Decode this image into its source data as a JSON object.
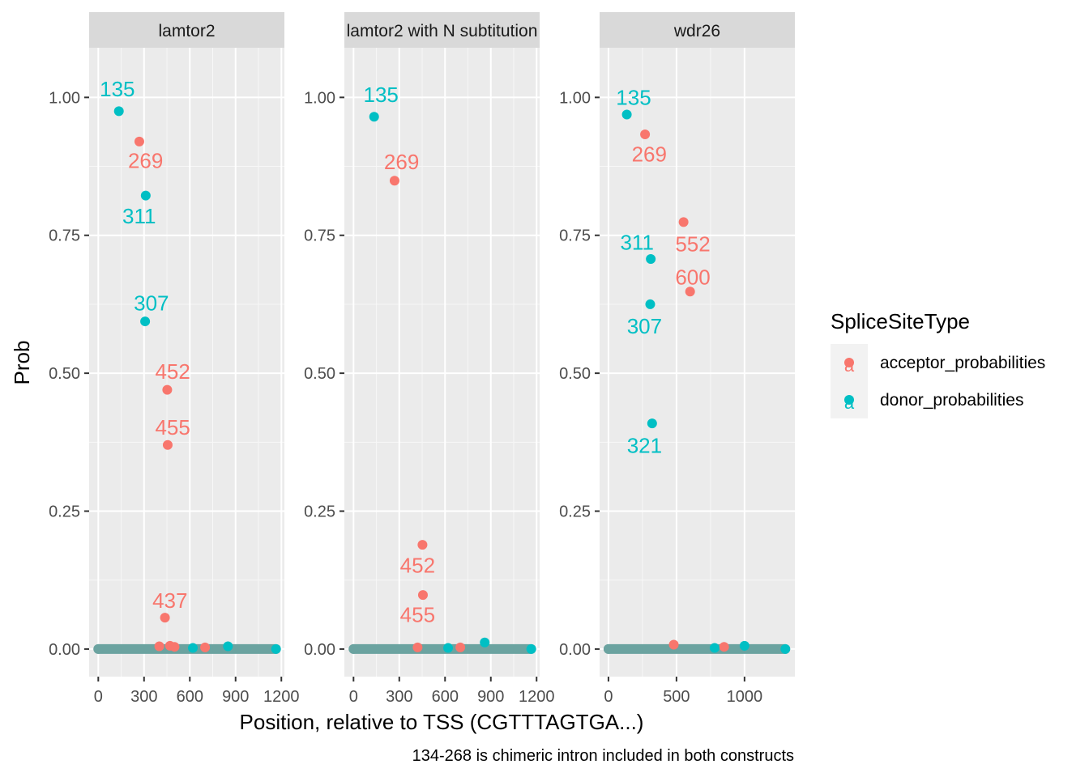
{
  "chart_data": {
    "type": "scatter",
    "ylabel": "Prob",
    "xlabel": "Position, relative to TSS (CGTTTAGTGA...)",
    "caption": "134-268 is chimeric intron included in both constructs",
    "ylim": [
      -0.05,
      1.09
    ],
    "y_ticks": [
      0.0,
      0.25,
      0.5,
      0.75,
      1.0
    ],
    "y_tick_labels": [
      "0.00",
      "0.25",
      "0.50",
      "0.75",
      "1.00"
    ],
    "grid": true,
    "legend": {
      "title": "SpliceSiteType",
      "placement": "right",
      "entries": [
        {
          "name": "acceptor_probabilities",
          "color": "#F8766D",
          "key_glyph": "a"
        },
        {
          "name": "donor_probabilities",
          "color": "#00BFC4",
          "key_glyph": "a"
        }
      ]
    },
    "series_colors": {
      "acceptor": "#F8766D",
      "donor": "#00BFC4",
      "overlap": "#6BA3A0"
    },
    "panels": [
      {
        "title": "lamtor2",
        "xlim": [
          -60,
          1220
        ],
        "x_ticks": [
          0,
          300,
          600,
          900,
          1200
        ],
        "x_tick_labels": [
          "0",
          "300",
          "600",
          "900",
          "1200"
        ],
        "baseline_range": [
          0,
          1165
        ],
        "acceptor": [
          [
            269,
            0.92,
            "269"
          ],
          [
            452,
            0.47,
            "452"
          ],
          [
            455,
            0.37,
            "455"
          ],
          [
            437,
            0.057,
            "437"
          ],
          [
            400,
            0.005,
            ""
          ],
          [
            470,
            0.006,
            ""
          ],
          [
            500,
            0.004,
            ""
          ],
          [
            700,
            0.003,
            ""
          ]
        ],
        "donor": [
          [
            135,
            0.975,
            "135"
          ],
          [
            311,
            0.822,
            "311"
          ],
          [
            307,
            0.594,
            "307"
          ],
          [
            620,
            0.002,
            ""
          ],
          [
            850,
            0.005,
            ""
          ],
          [
            1165,
            0.0,
            ""
          ]
        ],
        "labels": [
          {
            "text": "135",
            "series": "donor",
            "x": 125,
            "y": 1.015
          },
          {
            "text": "269",
            "series": "acceptor",
            "x": 310,
            "y": 0.885
          },
          {
            "text": "311",
            "series": "donor",
            "x": 268,
            "y": 0.785
          },
          {
            "text": "307",
            "series": "donor",
            "x": 348,
            "y": 0.627
          },
          {
            "text": "452",
            "series": "acceptor",
            "x": 488,
            "y": 0.503
          },
          {
            "text": "455",
            "series": "acceptor",
            "x": 488,
            "y": 0.402
          },
          {
            "text": "437",
            "series": "acceptor",
            "x": 470,
            "y": 0.088
          }
        ]
      },
      {
        "title": "lamtor2 with N subtitution",
        "xlim": [
          -60,
          1220
        ],
        "x_ticks": [
          0,
          300,
          600,
          900,
          1200
        ],
        "x_tick_labels": [
          "0",
          "300",
          "600",
          "900",
          "1200"
        ],
        "baseline_range": [
          0,
          1165
        ],
        "acceptor": [
          [
            269,
            0.849,
            "269"
          ],
          [
            452,
            0.189,
            "452"
          ],
          [
            455,
            0.098,
            "455"
          ],
          [
            420,
            0.003,
            ""
          ],
          [
            700,
            0.003,
            ""
          ]
        ],
        "donor": [
          [
            135,
            0.965,
            "135"
          ],
          [
            620,
            0.002,
            ""
          ],
          [
            860,
            0.012,
            ""
          ],
          [
            1165,
            0.0,
            ""
          ]
        ],
        "labels": [
          {
            "text": "135",
            "series": "donor",
            "x": 180,
            "y": 1.005
          },
          {
            "text": "269",
            "series": "acceptor",
            "x": 315,
            "y": 0.883
          },
          {
            "text": "452",
            "series": "acceptor",
            "x": 420,
            "y": 0.152
          },
          {
            "text": "455",
            "series": "acceptor",
            "x": 420,
            "y": 0.062
          }
        ]
      },
      {
        "title": "wdr26",
        "xlim": [
          -65,
          1370
        ],
        "x_ticks": [
          0,
          500,
          1000
        ],
        "x_tick_labels": [
          "0",
          "500",
          "1000"
        ],
        "baseline_range": [
          0,
          1300
        ],
        "acceptor": [
          [
            269,
            0.933,
            "269"
          ],
          [
            552,
            0.774,
            "552"
          ],
          [
            600,
            0.648,
            "600"
          ],
          [
            480,
            0.008,
            ""
          ],
          [
            850,
            0.004,
            ""
          ]
        ],
        "donor": [
          [
            135,
            0.969,
            "135"
          ],
          [
            311,
            0.707,
            "311"
          ],
          [
            307,
            0.625,
            "307"
          ],
          [
            321,
            0.409,
            "321"
          ],
          [
            780,
            0.002,
            ""
          ],
          [
            1000,
            0.006,
            ""
          ],
          [
            1300,
            0.0,
            ""
          ]
        ],
        "labels": [
          {
            "text": "135",
            "series": "donor",
            "x": 185,
            "y": 1.0
          },
          {
            "text": "269",
            "series": "acceptor",
            "x": 300,
            "y": 0.897
          },
          {
            "text": "311",
            "series": "donor",
            "x": 210,
            "y": 0.737
          },
          {
            "text": "552",
            "series": "acceptor",
            "x": 620,
            "y": 0.734
          },
          {
            "text": "600",
            "series": "acceptor",
            "x": 620,
            "y": 0.674
          },
          {
            "text": "307",
            "series": "donor",
            "x": 265,
            "y": 0.585
          },
          {
            "text": "321",
            "series": "donor",
            "x": 265,
            "y": 0.369
          }
        ]
      }
    ]
  }
}
